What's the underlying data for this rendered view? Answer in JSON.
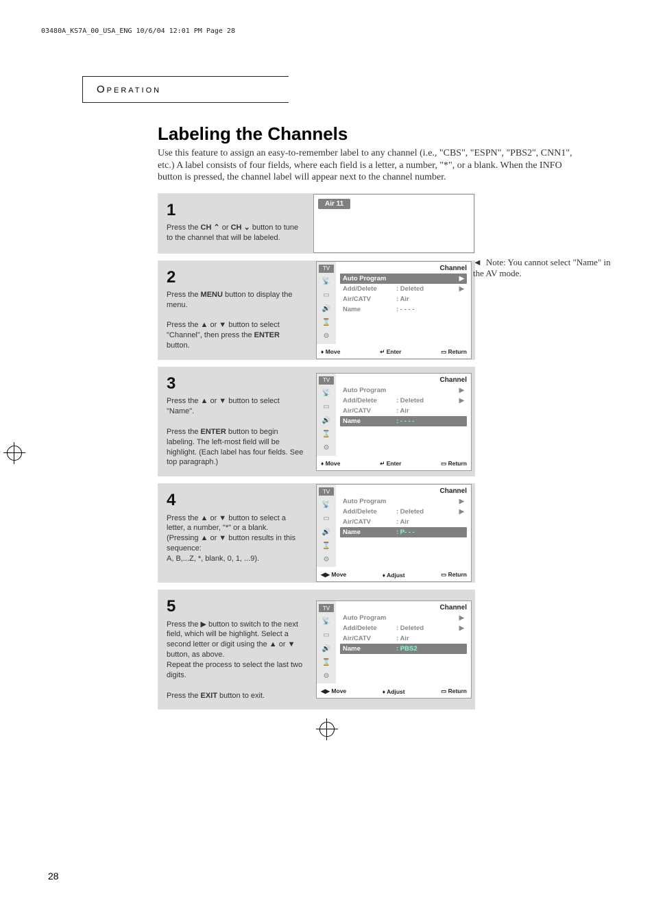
{
  "header_line": "03480A_KS7A_00_USA_ENG  10/6/04  12:01 PM  Page 28",
  "section_tab": "Operation",
  "title": "Labeling the Channels",
  "intro": "Use this feature to assign an easy-to-remember label to any channel (i.e., \"CBS\", \"ESPN\", \"PBS2\", CNN1\", etc.) A label consists of four fields, where each field is a letter, a number, \"*\", or a blank.  When the INFO button is pressed, the channel label will appear next to the channel number.",
  "side_note_prefix": "◄",
  "side_note": "Note: You cannot select \"Name\" in the AV mode.",
  "page_number": "28",
  "osd_common": {
    "menu_title": "Channel",
    "tv_label": "TV",
    "items": {
      "auto_program": "Auto Program",
      "add_delete": "Add/Delete",
      "add_delete_val": ":  Deleted",
      "air_catv": "Air/CATV",
      "air_catv_val": ":  Air",
      "name": "Name",
      "name_blank": ":  - - - -",
      "name_p": ":  P- - -",
      "name_pbs2": ":  PBS2"
    },
    "foot_move_ud": "Move",
    "foot_move_lr": "Move",
    "foot_enter": "Enter",
    "foot_adjust": "Adjust",
    "foot_return": "Return",
    "sym_updown": "♦",
    "sym_leftright": "◀▶",
    "sym_enter": "↵",
    "sym_return": "▭"
  },
  "steps": [
    {
      "num": "1",
      "text_parts": [
        "Press the ",
        "CH ⌃",
        " or ",
        "CH ⌄",
        " button to tune to the channel that will be labeled."
      ],
      "badge": "Air  11",
      "osd_type": "simple"
    },
    {
      "num": "2",
      "text_parts": [
        "Press the ",
        "MENU",
        " button to display the menu.",
        "\n\n",
        "Press the ▲ or ▼ button to select \"Channel\", then press the ",
        "ENTER",
        " button."
      ],
      "osd_type": "menu",
      "highlight": "auto_program",
      "name_val": ":  - - - -",
      "foot_mode": "move_enter"
    },
    {
      "num": "3",
      "text_parts": [
        "Press the ▲ or ▼ button to select \"Name\".",
        "\n\n",
        "Press the ",
        "ENTER",
        " button to begin labeling. The left-most field will be highlight. (Each label has four fields. See top paragraph.)"
      ],
      "osd_type": "menu",
      "highlight": "name",
      "name_val": ":  - - - -",
      "foot_mode": "move_enter"
    },
    {
      "num": "4",
      "text_parts": [
        "Press the ▲ or ▼ button to select a letter, a number, \"*\" or a blank.",
        "\n",
        "(Pressing ▲ or ▼ button results in this sequence:",
        "\n",
        "A, B,...Z,  *, blank, 0, 1, ...9)."
      ],
      "osd_type": "menu",
      "highlight": "name",
      "name_val": ":  P- - -",
      "foot_mode": "move_adjust"
    },
    {
      "num": "5",
      "text_parts": [
        "Press the ▶ button to switch to the next field, which will be highlight. Select a second letter or digit using the ▲ or ▼ button, as above.",
        "\n",
        "Repeat the process to select the last two digits.",
        "\n\n",
        "Press the ",
        "EXIT",
        " button to exit."
      ],
      "osd_type": "menu",
      "highlight": "name",
      "name_val": ":  PBS2",
      "foot_mode": "move_adjust"
    }
  ]
}
